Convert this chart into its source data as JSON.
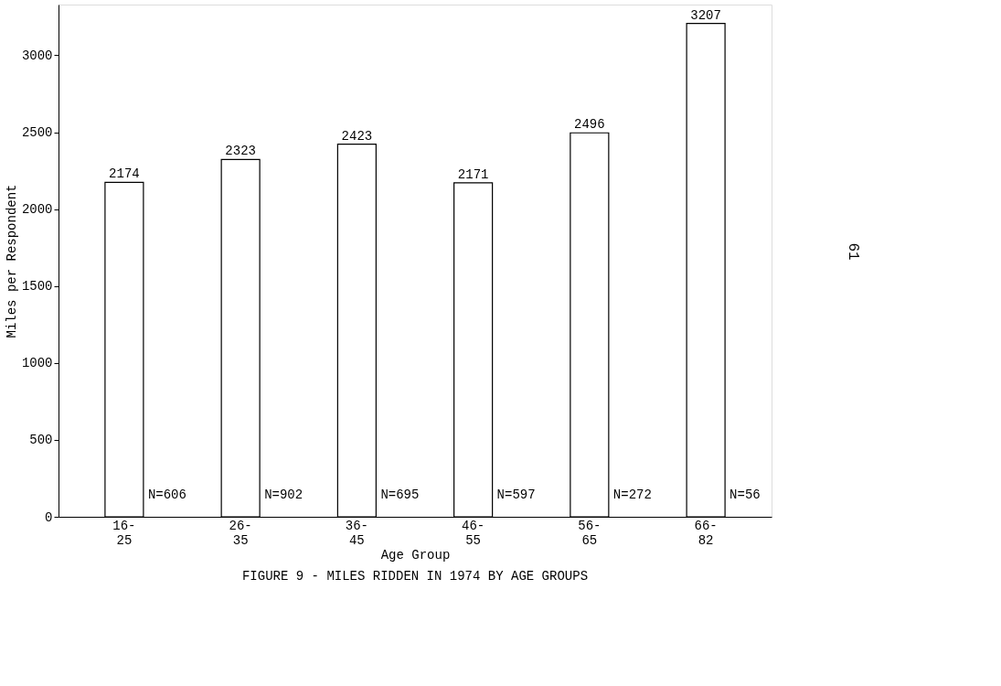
{
  "chart_data": {
    "type": "bar",
    "title": "FIGURE 9 - MILES RIDDEN IN 1974 BY AGE GROUPS",
    "xlabel": "Age Group",
    "ylabel": "Miles per Respondent",
    "categories": [
      "16-\n25",
      "26-\n35",
      "36-\n45",
      "46-\n55",
      "56-\n65",
      "66-\n82"
    ],
    "values": [
      2174,
      2323,
      2423,
      2171,
      2496,
      3207
    ],
    "color": "#ffffff",
    "ylim": [
      0,
      3330
    ],
    "yticks": [
      0,
      500,
      1000,
      1500,
      2000,
      2500,
      3000
    ],
    "grid": false,
    "data_labels": true,
    "annotations": [
      "N=606",
      "N=902",
      "N=695",
      "N=597",
      "N=272",
      "N=56",
      "61"
    ]
  }
}
